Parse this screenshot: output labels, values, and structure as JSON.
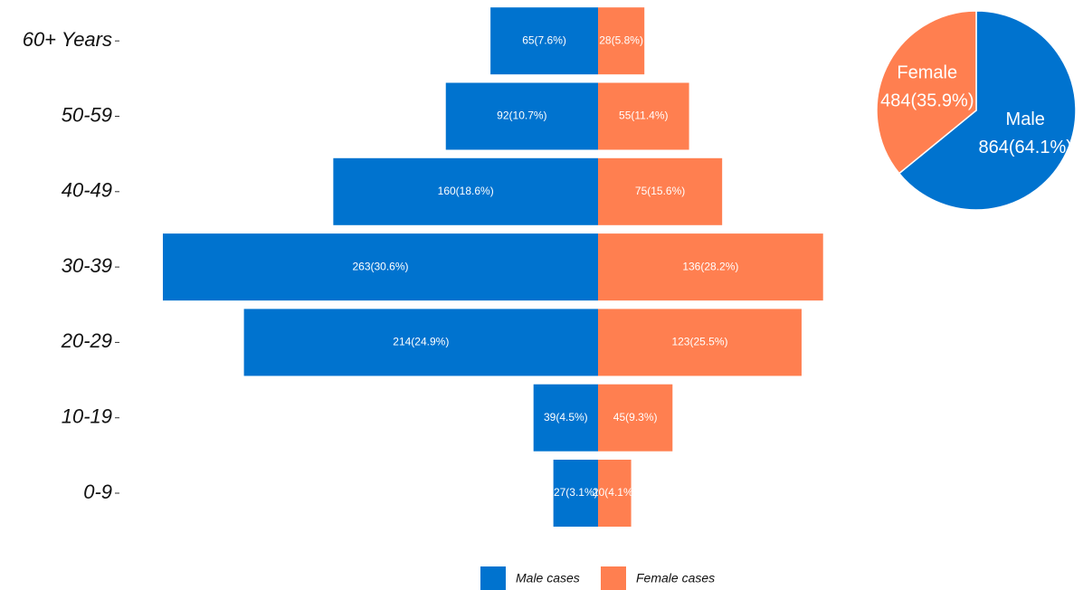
{
  "chart_data": [
    {
      "type": "bar",
      "categories": [
        "0-9",
        "10-19",
        "20-29",
        "30-39",
        "40-49",
        "50-59",
        "60+ Years"
      ],
      "series": [
        {
          "name": "Male cases",
          "color": "#0073cf",
          "values": [
            27,
            39,
            214,
            263,
            160,
            92,
            65
          ],
          "value_labels": [
            "27(3.1%)",
            "39(4.5%)",
            "214(24.9%)",
            "263(30.6%)",
            "160(18.6%)",
            "92(10.7%)",
            "65(7.6%)"
          ]
        },
        {
          "name": "Female cases",
          "color": "#ff7f50",
          "values": [
            20,
            45,
            123,
            136,
            75,
            55,
            28
          ],
          "value_labels": [
            "20(4.1%)",
            "45(9.3%)",
            "123(25.5%)",
            "136(28.2%)",
            "75(15.6%)",
            "55(11.4%)",
            "28(5.8%)"
          ]
        }
      ],
      "legend": "bottom"
    },
    {
      "type": "pie",
      "categories": [
        "Male",
        "Female"
      ],
      "values": [
        864,
        484
      ],
      "value_labels": [
        "864(64.1%)",
        "484(35.9%)"
      ],
      "colors": [
        "#0073cf",
        "#ff7f50"
      ]
    }
  ]
}
